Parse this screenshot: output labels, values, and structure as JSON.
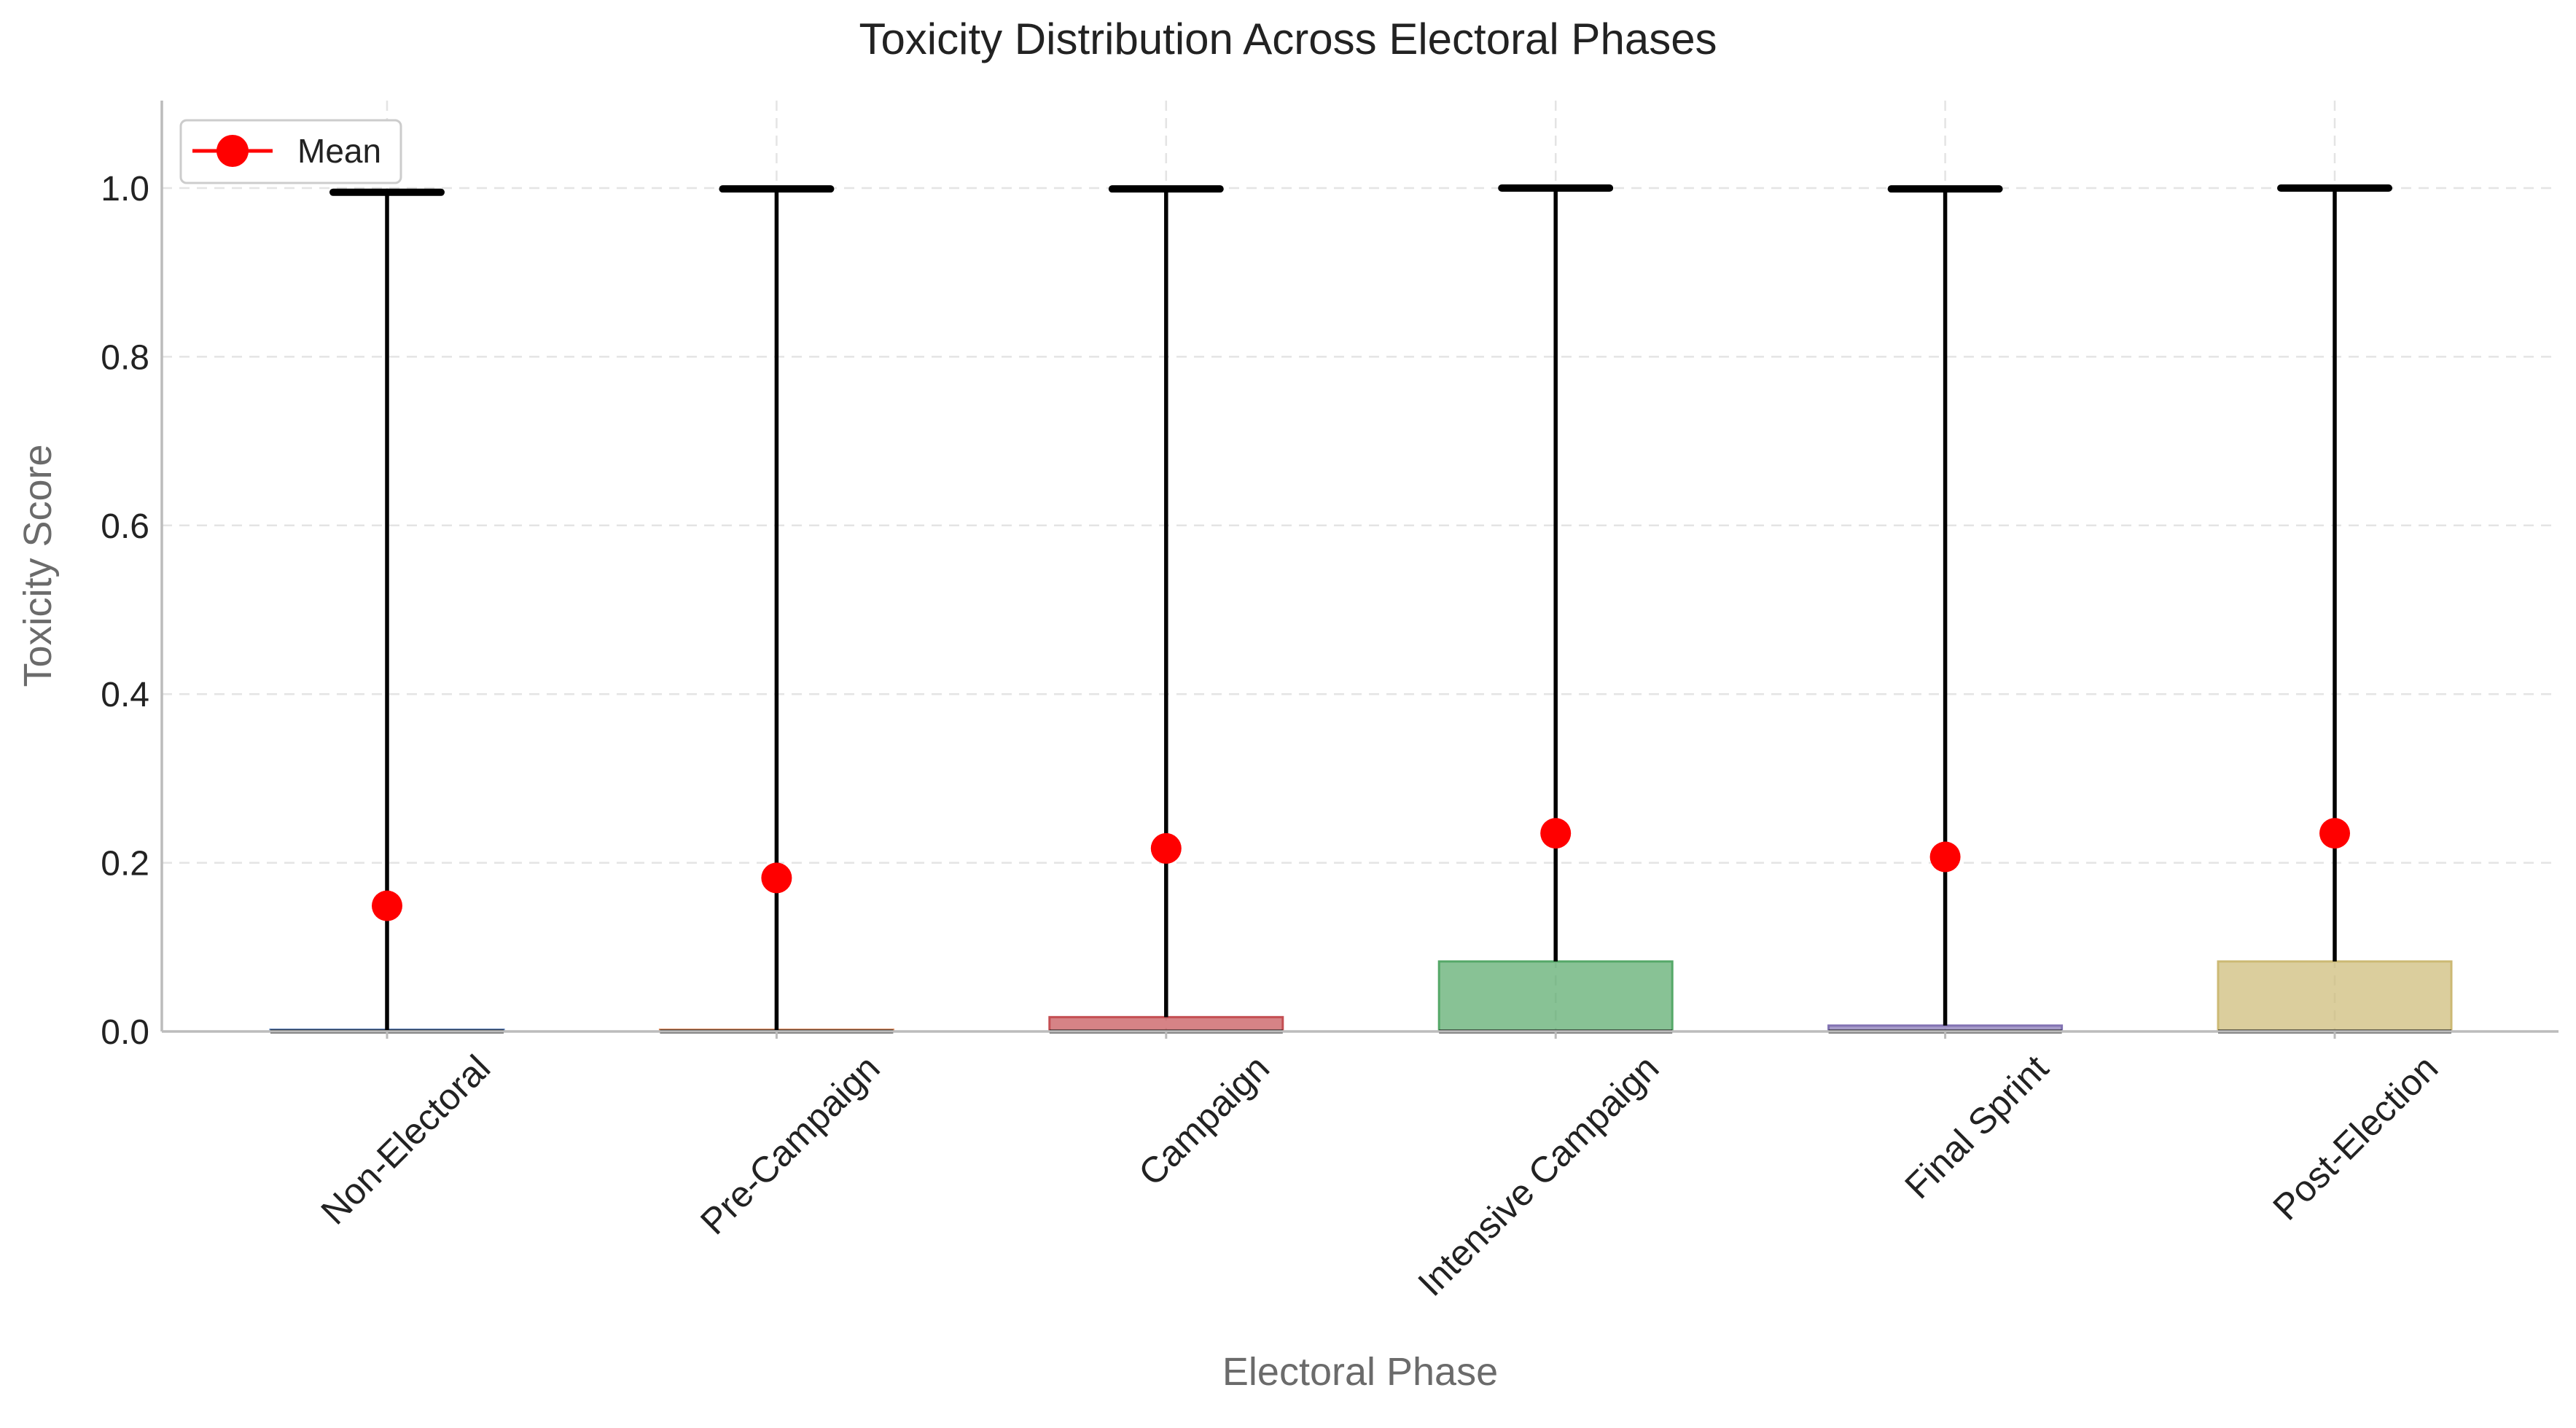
{
  "chart_data": {
    "type": "box",
    "title": "Toxicity Distribution Across Electoral Phases",
    "xlabel": "Electoral Phase",
    "ylabel": "Toxicity Score",
    "ylim": [
      0,
      1.1
    ],
    "yticks": [
      "0.0",
      "0.2",
      "0.4",
      "0.6",
      "0.8",
      "1.0"
    ],
    "grid": true,
    "legend": {
      "position": "top-left",
      "entries": [
        {
          "label": "Mean",
          "color": "#ff0000",
          "marker": "circle"
        }
      ]
    },
    "categories": [
      "Non-Electoral",
      "Pre-Campaign",
      "Campaign",
      "Intensive Campaign",
      "Final Sprint",
      "Post-Election"
    ],
    "boxes": [
      {
        "min": 0.0,
        "q1": 0.0,
        "median": 0.0,
        "q3": 0.002,
        "max": 0.995,
        "mean": 0.149,
        "color": "#4c72b0"
      },
      {
        "min": 0.0,
        "q1": 0.0,
        "median": 0.0,
        "q3": 0.002,
        "max": 0.999,
        "mean": 0.182,
        "color": "#dd8452"
      },
      {
        "min": 0.0,
        "q1": 0.0,
        "median": 0.0,
        "q3": 0.017,
        "max": 0.999,
        "mean": 0.217,
        "color": "#c44e52"
      },
      {
        "min": 0.0,
        "q1": 0.0,
        "median": 0.0,
        "q3": 0.083,
        "max": 1.0,
        "mean": 0.235,
        "color": "#55a868"
      },
      {
        "min": 0.0,
        "q1": 0.0,
        "median": 0.0,
        "q3": 0.007,
        "max": 0.999,
        "mean": 0.207,
        "color": "#8172b2"
      },
      {
        "min": 0.0,
        "q1": 0.0,
        "median": 0.0,
        "q3": 0.083,
        "max": 1.0,
        "mean": 0.235,
        "color": "#ccb974"
      }
    ]
  }
}
